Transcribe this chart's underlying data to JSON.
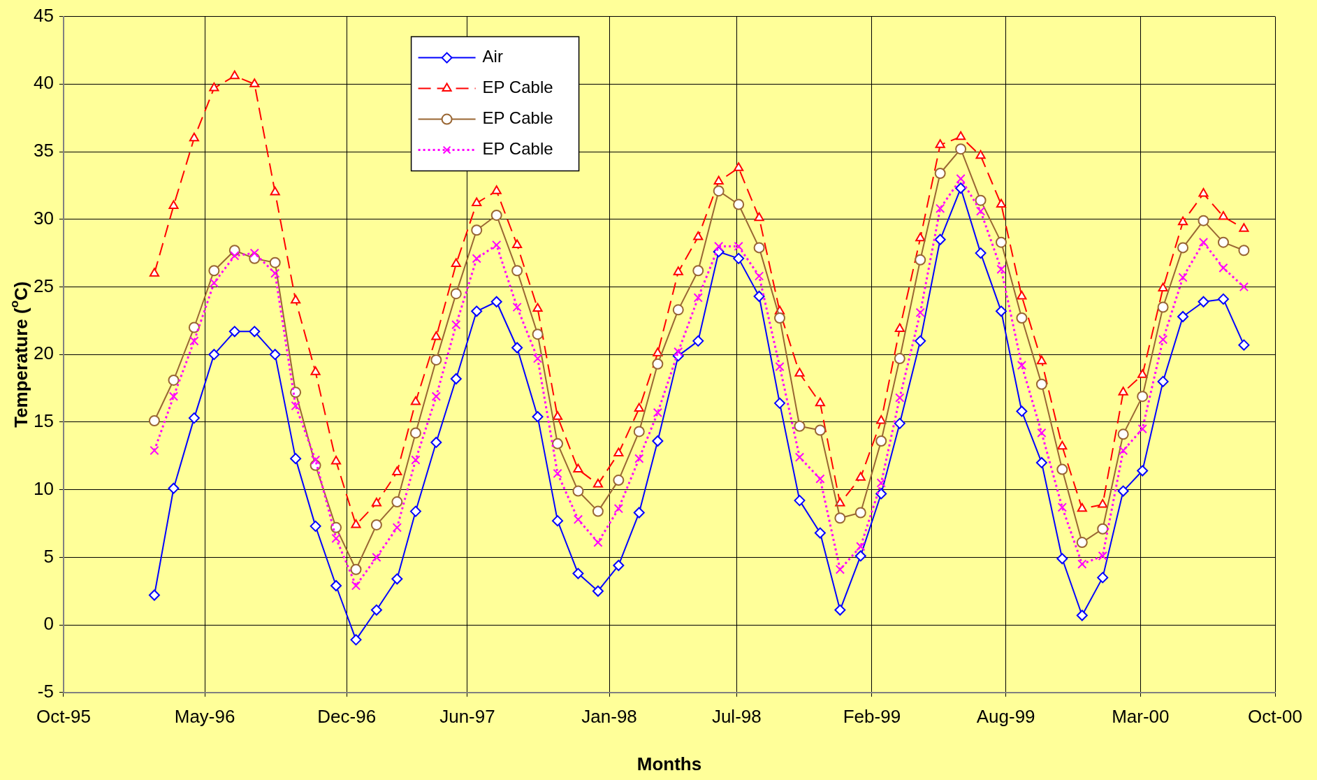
{
  "chart_data": {
    "type": "line",
    "xlabel": "Months",
    "ylabel": "Temperature ($^{o}$C)",
    "x": [
      "1996-02-15",
      "1996-03-15",
      "1996-04-15",
      "1996-05-15",
      "1996-06-15",
      "1996-07-15",
      "1996-08-15",
      "1996-09-15",
      "1996-10-15",
      "1996-11-15",
      "1996-12-15",
      "1997-01-15",
      "1997-02-15",
      "1997-03-15",
      "1997-04-15",
      "1997-05-15",
      "1997-06-15",
      "1997-07-15",
      "1997-08-15",
      "1997-09-15",
      "1997-10-15",
      "1997-11-15",
      "1997-12-15",
      "1998-01-15",
      "1998-02-15",
      "1998-03-15",
      "1998-04-15",
      "1998-05-15",
      "1998-06-15",
      "1998-07-15",
      "1998-08-15",
      "1998-09-15",
      "1998-10-15",
      "1998-11-15",
      "1998-12-15",
      "1999-01-15",
      "1999-02-15",
      "1999-03-15",
      "1999-04-15",
      "1999-05-15",
      "1999-06-15",
      "1999-07-15",
      "1999-08-15",
      "1999-09-15",
      "1999-10-15",
      "1999-11-15",
      "1999-12-15",
      "2000-01-15",
      "2000-02-15",
      "2000-03-15",
      "2000-04-15",
      "2000-05-15",
      "2000-06-15",
      "2000-07-15",
      "2000-08-15"
    ],
    "series": [
      {
        "name": "Air",
        "color": "#0000ff",
        "marker": "diamond",
        "line_style": "solid",
        "values": [
          2.2,
          10.1,
          15.3,
          20.0,
          21.7,
          21.7,
          20.0,
          12.3,
          7.3,
          2.9,
          -1.1,
          1.1,
          3.4,
          8.4,
          13.5,
          18.2,
          23.2,
          23.9,
          20.5,
          15.4,
          7.7,
          3.8,
          2.5,
          4.4,
          8.3,
          13.6,
          19.9,
          21.0,
          27.6,
          27.1,
          24.3,
          16.4,
          9.2,
          6.8,
          1.1,
          5.1,
          9.7,
          14.9,
          21.0,
          28.5,
          32.3,
          27.5,
          23.2,
          15.8,
          12.0,
          4.9,
          0.7,
          3.5,
          9.9,
          11.4,
          18.0,
          22.8,
          23.9,
          24.1,
          20.7
        ]
      },
      {
        "name": "EP Cable",
        "color": "#ff0000",
        "marker": "triangle",
        "line_style": "dashed",
        "values": [
          26.0,
          31.0,
          36.0,
          39.7,
          40.6,
          40.0,
          32.0,
          24.0,
          18.7,
          12.1,
          7.4,
          9.0,
          11.3,
          16.5,
          21.3,
          26.7,
          31.2,
          32.1,
          28.1,
          23.4,
          15.4,
          11.5,
          10.4,
          12.7,
          16.0,
          20.1,
          26.1,
          28.7,
          32.8,
          33.8,
          30.1,
          23.2,
          18.6,
          16.4,
          9.0,
          10.9,
          15.1,
          21.9,
          28.6,
          35.5,
          36.1,
          34.7,
          31.1,
          24.3,
          19.5,
          13.2,
          8.6,
          8.9,
          17.2,
          18.5,
          24.9,
          29.8,
          31.9,
          30.2,
          29.3
        ]
      },
      {
        "name": "EP Cable",
        "color": "#996633",
        "marker": "circle",
        "line_style": "solid",
        "values": [
          15.1,
          18.1,
          22.0,
          26.2,
          27.7,
          27.1,
          26.8,
          17.2,
          11.8,
          7.2,
          4.1,
          7.4,
          9.1,
          14.2,
          19.6,
          24.5,
          29.2,
          30.3,
          26.2,
          21.5,
          13.4,
          9.9,
          8.4,
          10.7,
          14.3,
          19.3,
          23.3,
          26.2,
          32.1,
          31.1,
          27.9,
          22.7,
          14.7,
          14.4,
          7.9,
          8.3,
          13.6,
          19.7,
          27.0,
          33.4,
          35.2,
          31.4,
          28.3,
          22.7,
          17.8,
          11.5,
          6.1,
          7.1,
          14.1,
          16.9,
          23.5,
          27.9,
          29.9,
          28.3,
          27.7
        ]
      },
      {
        "name": "EP Cable",
        "color": "#ff00ff",
        "marker": "cross",
        "line_style": "dotted",
        "values": [
          12.9,
          16.9,
          21.0,
          25.3,
          27.3,
          27.5,
          26.0,
          16.2,
          12.2,
          6.4,
          2.9,
          5.0,
          7.2,
          12.2,
          16.9,
          22.2,
          27.1,
          28.1,
          23.5,
          19.7,
          11.2,
          7.8,
          6.1,
          8.6,
          12.3,
          15.7,
          20.2,
          24.2,
          28.0,
          28.0,
          25.8,
          19.1,
          12.4,
          10.8,
          4.1,
          5.8,
          10.5,
          16.8,
          23.1,
          30.8,
          33.0,
          30.6,
          26.3,
          19.2,
          14.2,
          8.7,
          4.5,
          5.1,
          12.9,
          14.5,
          21.1,
          25.7,
          28.3,
          26.4,
          25.0
        ]
      }
    ],
    "xlim": [
      "1995-10-01",
      "2000-10-01"
    ],
    "xticks": [
      {
        "value": "1995-10-01",
        "label": "Oct-95"
      },
      {
        "value": "1996-05-01",
        "label": "May-96"
      },
      {
        "value": "1996-12-01",
        "label": "Dec-96"
      },
      {
        "value": "1997-06-01",
        "label": "Jun-97"
      },
      {
        "value": "1998-01-01",
        "label": "Jan-98"
      },
      {
        "value": "1998-07-12",
        "label": "Jul-98"
      },
      {
        "value": "1999-02-01",
        "label": "Feb-99"
      },
      {
        "value": "1999-08-22",
        "label": "Aug-99"
      },
      {
        "value": "2000-03-12",
        "label": "Mar-00"
      },
      {
        "value": "2000-10-01",
        "label": "Oct-00"
      }
    ],
    "ylim": [
      -5,
      45
    ],
    "yticks": [
      -5,
      0,
      5,
      10,
      15,
      20,
      25,
      30,
      35,
      40,
      45
    ],
    "grid": true,
    "legend": "top left"
  }
}
